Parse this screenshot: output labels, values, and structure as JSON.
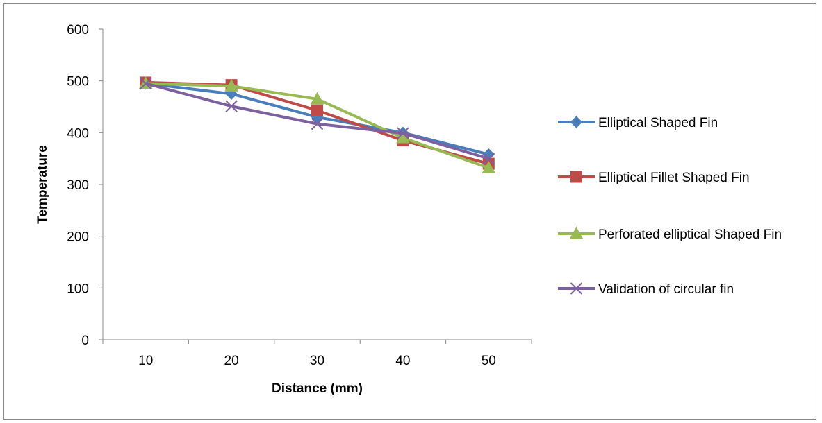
{
  "chart_data": {
    "type": "line",
    "title": "",
    "xlabel": "Distance (mm)",
    "ylabel": "Temperature",
    "categories": [
      "10",
      "20",
      "30",
      "40",
      "50"
    ],
    "ylim": [
      0,
      600
    ],
    "yticks": [
      0,
      100,
      200,
      300,
      400,
      500,
      600
    ],
    "grid": false,
    "legend_position": "right",
    "series": [
      {
        "name": "Elliptical Shaped Fin",
        "values": [
          495,
          475,
          430,
          400,
          358
        ],
        "color": "#4A7EBB",
        "marker": "diamond"
      },
      {
        "name": "Elliptical Fillet Shaped Fin",
        "values": [
          497,
          492,
          443,
          385,
          340
        ],
        "color": "#BE4B48",
        "marker": "square"
      },
      {
        "name": "Perforated elliptical Shaped Fin",
        "values": [
          495,
          490,
          465,
          390,
          332
        ],
        "color": "#98B954",
        "marker": "triangle"
      },
      {
        "name": "Validation of circular fin",
        "values": [
          495,
          451,
          417,
          399,
          350
        ],
        "color": "#7D60A0",
        "marker": "x"
      }
    ]
  }
}
